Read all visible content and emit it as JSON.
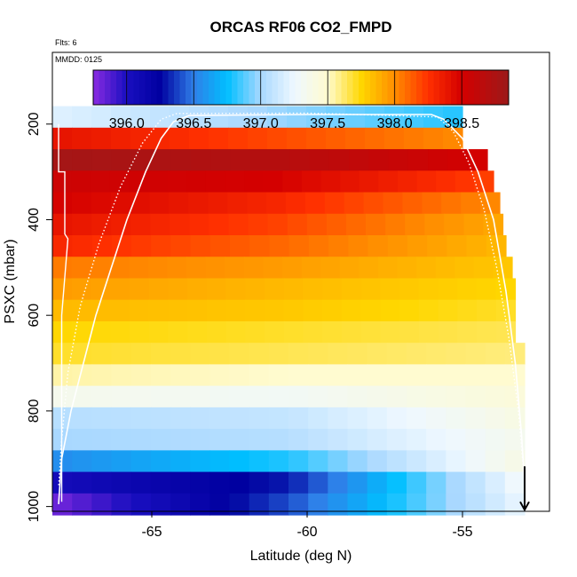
{
  "chart_data": {
    "type": "heatmap",
    "title": "ORCAS RF06 CO2_FMPD",
    "annotations": {
      "flights": "Flts: 6",
      "date": "MMDD: 0125"
    },
    "xlabel": "Latitude (deg N)",
    "ylabel": "PSXC (mbar)",
    "xlim": [
      -68.2,
      -52.2
    ],
    "ylim": [
      1010,
      50
    ],
    "y_reversed": true,
    "xticks": [
      -65,
      -60,
      -55
    ],
    "yticks": [
      200,
      400,
      600,
      800,
      1000
    ],
    "colorbar": {
      "range": [
        395.75,
        398.85
      ],
      "ticks": [
        396.0,
        396.5,
        397.0,
        397.5,
        398.0,
        398.5
      ],
      "tick_labels": [
        "396.0",
        "396.5",
        "397.0",
        "397.5",
        "398.0",
        "398.5"
      ],
      "stops": [
        {
          "v": 395.75,
          "c": "#8a2be2"
        },
        {
          "v": 396.0,
          "c": "#1a0fc0"
        },
        {
          "v": 396.25,
          "c": "#0000a0"
        },
        {
          "v": 396.5,
          "c": "#2f7fe8"
        },
        {
          "v": 396.75,
          "c": "#00bfff"
        },
        {
          "v": 397.0,
          "c": "#a8d8ff"
        },
        {
          "v": 397.25,
          "c": "#eef8ff"
        },
        {
          "v": 397.5,
          "c": "#fffbd0"
        },
        {
          "v": 397.75,
          "c": "#ffd700"
        },
        {
          "v": 398.0,
          "c": "#ff8c00"
        },
        {
          "v": 398.25,
          "c": "#ff3000"
        },
        {
          "v": 398.5,
          "c": "#d40000"
        },
        {
          "v": 398.85,
          "c": "#9c1a1a"
        }
      ]
    },
    "lat_range": [
      -68.2,
      -53.0
    ],
    "lat_step": 0.625,
    "pressure_levels": [
      {
        "p": 185,
        "lat_max": -55.0,
        "left": 397.2,
        "right": 396.8,
        "mid": 397.0
      },
      {
        "p": 230,
        "lat_max": -55.0,
        "left": 398.4,
        "right": 398.0,
        "mid": 398.2
      },
      {
        "p": 275,
        "lat_max": -54.2,
        "left": 398.8,
        "right": 398.5,
        "mid": 398.7
      },
      {
        "p": 320,
        "lat_max": -54.0,
        "left": 398.55,
        "right": 398.2,
        "mid": 398.5
      },
      {
        "p": 365,
        "lat_max": -53.8,
        "left": 398.5,
        "right": 398.0,
        "mid": 398.3
      },
      {
        "p": 410,
        "lat_max": -53.7,
        "left": 398.4,
        "right": 397.9,
        "mid": 398.2
      },
      {
        "p": 455,
        "lat_max": -53.6,
        "left": 398.3,
        "right": 397.85,
        "mid": 398.1
      },
      {
        "p": 500,
        "lat_max": -53.4,
        "left": 398.05,
        "right": 397.8,
        "mid": 397.95
      },
      {
        "p": 545,
        "lat_max": -53.3,
        "left": 397.95,
        "right": 397.75,
        "mid": 397.85
      },
      {
        "p": 590,
        "lat_max": -53.3,
        "left": 397.85,
        "right": 397.7,
        "mid": 397.8
      },
      {
        "p": 635,
        "lat_max": -53.3,
        "left": 397.75,
        "right": 397.65,
        "mid": 397.7
      },
      {
        "p": 680,
        "lat_max": -53.0,
        "left": 397.7,
        "right": 397.6,
        "mid": 397.65
      },
      {
        "p": 725,
        "lat_max": -53.0,
        "left": 397.55,
        "right": 397.5,
        "mid": 397.5
      },
      {
        "p": 770,
        "lat_max": -53.0,
        "left": 397.35,
        "right": 397.45,
        "mid": 397.3
      },
      {
        "p": 815,
        "lat_max": -53.0,
        "left": 397.05,
        "right": 397.4,
        "mid": 397.1
      },
      {
        "p": 860,
        "lat_max": -53.0,
        "left": 397.0,
        "right": 397.35,
        "mid": 397.05
      },
      {
        "p": 905,
        "lat_max": -53.0,
        "left": 396.55,
        "right": 397.4,
        "mid": 396.8
      },
      {
        "p": 950,
        "lat_max": -53.0,
        "left": 396.05,
        "right": 397.3,
        "mid": 396.3
      },
      {
        "p": 995,
        "lat_max": -53.0,
        "left": 395.8,
        "right": 397.25,
        "mid": 396.4
      }
    ],
    "track": {
      "outbound": [
        [
          -68.0,
          995
        ],
        [
          -67.9,
          900
        ],
        [
          -67.6,
          800
        ],
        [
          -67.2,
          700
        ],
        [
          -66.8,
          600
        ],
        [
          -66.3,
          500
        ],
        [
          -65.8,
          400
        ],
        [
          -65.2,
          300
        ],
        [
          -64.7,
          230
        ],
        [
          -64.3,
          195
        ],
        [
          -63.8,
          182
        ],
        [
          -60.0,
          180
        ],
        [
          -56.0,
          180
        ],
        [
          -55.6,
          190
        ],
        [
          -55.0,
          230
        ],
        [
          -54.5,
          300
        ],
        [
          -54.0,
          400
        ],
        [
          -53.6,
          550
        ],
        [
          -53.3,
          700
        ],
        [
          -53.1,
          850
        ],
        [
          -53.0,
          950
        ],
        [
          -53.0,
          990
        ]
      ],
      "return": [
        [
          -53.0,
          950
        ],
        [
          -53.2,
          800
        ],
        [
          -53.5,
          650
        ],
        [
          -53.9,
          500
        ],
        [
          -54.3,
          380
        ],
        [
          -54.8,
          280
        ],
        [
          -55.3,
          215
        ],
        [
          -55.8,
          185
        ],
        [
          -60.0,
          177
        ],
        [
          -64.2,
          178
        ],
        [
          -64.7,
          190
        ],
        [
          -65.3,
          240
        ],
        [
          -66.0,
          330
        ],
        [
          -66.7,
          450
        ],
        [
          -67.3,
          580
        ],
        [
          -67.7,
          720
        ],
        [
          -67.9,
          860
        ],
        [
          -68.0,
          960
        ]
      ],
      "left_edge": [
        [
          -68.0,
          200
        ],
        [
          -68.0,
          300
        ],
        [
          -67.8,
          300
        ],
        [
          -67.8,
          430
        ],
        [
          -67.7,
          440
        ],
        [
          -67.9,
          600
        ],
        [
          -67.9,
          800
        ],
        [
          -67.9,
          950
        ],
        [
          -67.9,
          990
        ]
      ],
      "arrow_at": [
        -53.0,
        1005
      ]
    }
  }
}
